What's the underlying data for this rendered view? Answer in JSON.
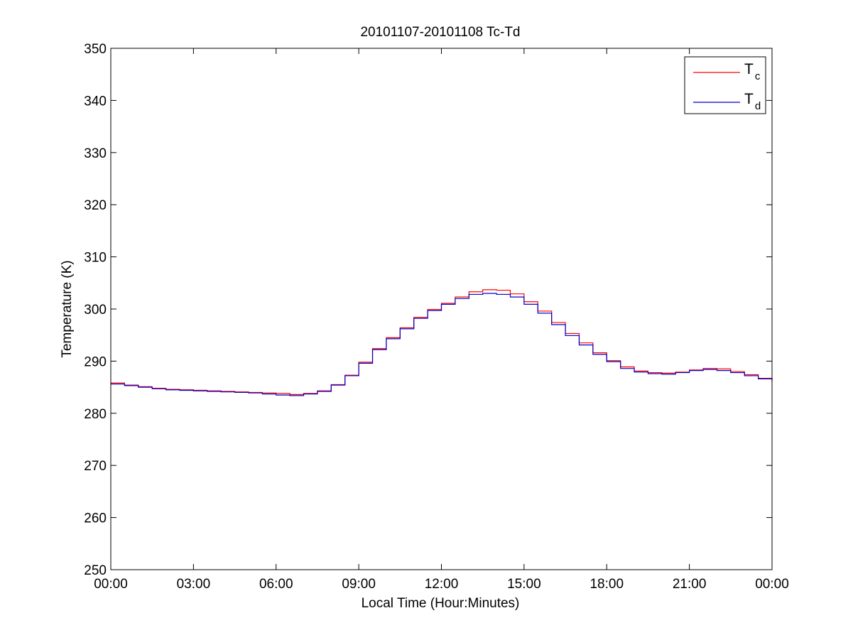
{
  "chart_data": {
    "type": "line",
    "title": "20101107-20101108 Tc-Td",
    "xlabel": "Local Time (Hour:Minutes)",
    "ylabel": "Temperature (K)",
    "xlim": [
      0,
      24
    ],
    "ylim": [
      250,
      350
    ],
    "x_ticks": [
      0,
      3,
      6,
      9,
      12,
      15,
      18,
      21,
      24
    ],
    "x_tick_labels": [
      "00:00",
      "03:00",
      "06:00",
      "09:00",
      "12:00",
      "15:00",
      "18:00",
      "21:00",
      "00:00"
    ],
    "y_ticks": [
      250,
      260,
      270,
      280,
      290,
      300,
      310,
      320,
      330,
      340,
      350
    ],
    "y_tick_labels": [
      "250",
      "260",
      "270",
      "280",
      "290",
      "300",
      "310",
      "320",
      "330",
      "340",
      "350"
    ],
    "x_unit": "hours",
    "grid": false,
    "legend_position": "top-right",
    "series": [
      {
        "legend_main": "T",
        "legend_sub": "c",
        "color": "#ff0000",
        "x": [
          0,
          0.5,
          1,
          1.5,
          2,
          2.5,
          3,
          3.5,
          4,
          4.5,
          5,
          5.5,
          6,
          6.5,
          7,
          7.5,
          8,
          8.5,
          9,
          9.5,
          10,
          10.5,
          11,
          11.5,
          12,
          12.5,
          13,
          13.5,
          14,
          14.5,
          15,
          15.5,
          16,
          16.5,
          17,
          17.5,
          18,
          18.5,
          19,
          19.5,
          20,
          20.5,
          21,
          21.5,
          22,
          22.5,
          23,
          23.5,
          24
        ],
        "y": [
          285.8,
          285.4,
          285.1,
          284.8,
          284.6,
          284.5,
          284.4,
          284.3,
          284.2,
          284.1,
          284.0,
          283.9,
          283.8,
          283.6,
          283.8,
          284.3,
          285.5,
          287.3,
          289.8,
          292.4,
          294.5,
          296.4,
          298.4,
          299.9,
          301.1,
          302.3,
          303.3,
          303.7,
          303.6,
          302.9,
          301.4,
          299.6,
          297.4,
          295.3,
          293.5,
          291.6,
          290.1,
          288.9,
          288.1,
          287.8,
          287.7,
          287.9,
          288.3,
          288.6,
          288.5,
          288.0,
          287.4,
          286.7,
          286.3
        ]
      },
      {
        "legend_main": "T",
        "legend_sub": "d",
        "color": "#0000cc",
        "x": [
          0,
          0.5,
          1,
          1.5,
          2,
          2.5,
          3,
          3.5,
          4,
          4.5,
          5,
          5.5,
          6,
          6.5,
          7,
          7.5,
          8,
          8.5,
          9,
          9.5,
          10,
          10.5,
          11,
          11.5,
          12,
          12.5,
          13,
          13.5,
          14,
          14.5,
          15,
          15.5,
          16,
          16.5,
          17,
          17.5,
          18,
          18.5,
          19,
          19.5,
          20,
          20.5,
          21,
          21.5,
          22,
          22.5,
          23,
          23.5,
          24
        ],
        "y": [
          285.6,
          285.3,
          285.0,
          284.7,
          284.5,
          284.4,
          284.3,
          284.2,
          284.1,
          284.0,
          283.9,
          283.7,
          283.5,
          283.4,
          283.7,
          284.2,
          285.4,
          287.2,
          289.6,
          292.2,
          294.3,
          296.2,
          298.2,
          299.7,
          300.9,
          302.0,
          302.8,
          303.0,
          302.8,
          302.3,
          300.9,
          299.2,
          297.0,
          294.9,
          293.1,
          291.3,
          289.9,
          288.6,
          287.9,
          287.6,
          287.5,
          287.8,
          288.2,
          288.4,
          288.2,
          287.8,
          287.2,
          286.6,
          286.2
        ]
      }
    ]
  }
}
